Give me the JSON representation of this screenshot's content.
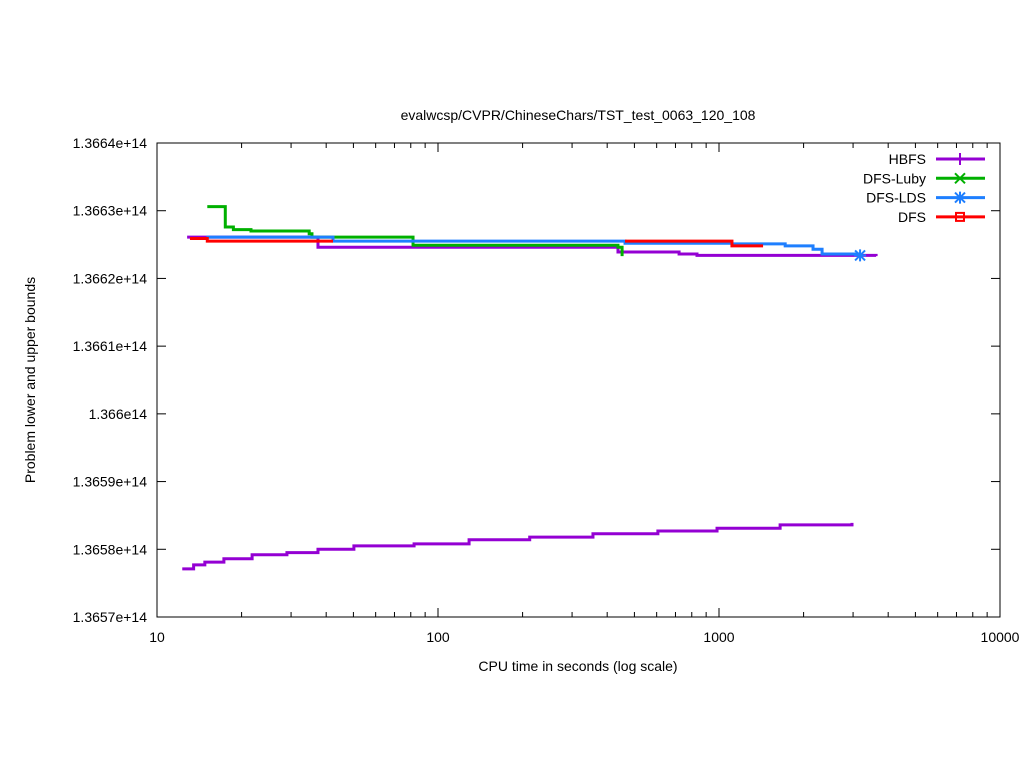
{
  "chart_data": {
    "type": "line",
    "title": "evalwcsp/CVPR/ChineseChars/TST_test_0063_120_108",
    "xlabel": "CPU time in seconds (log scale)",
    "ylabel": "Problem lower and upper bounds",
    "xscale": "log",
    "xlim": [
      10,
      10000
    ],
    "ylim": [
      136570000000000.0,
      136640000000000.0
    ],
    "x_ticks": [
      10,
      100,
      1000,
      10000
    ],
    "x_tick_labels": [
      "10",
      "100",
      "1000",
      "10000"
    ],
    "y_ticks": [
      136570000000000.0,
      136580000000000.0,
      136590000000000.0,
      136600000000000.0,
      136610000000000.0,
      136620000000000.0,
      136630000000000.0,
      136640000000000.0
    ],
    "y_tick_labels": [
      "1.3657e+14",
      "1.3658e+14",
      "1.3659e+14",
      "1.366e14",
      "1.3661e+14",
      "1.3662e+14",
      "1.3663e+14",
      "1.3664e+14"
    ],
    "legend_position": "top-right",
    "grid": false,
    "series": [
      {
        "name": "HBFS",
        "color": "#9400d3",
        "marker": "plus",
        "segments": [
          {
            "x": [
              12.8,
              37.4,
              437,
              721,
              835,
              3623
            ],
            "y": [
              136626100000000.0,
              136624600000000.0,
              136623900000000.0,
              136623600000000.0,
              136623400000000.0,
              136623300000000.0
            ]
          },
          {
            "x": [
              12.3,
              13.5,
              14.8,
              17.3,
              21.8,
              29.0,
              37.4,
              50.2,
              82.2,
              129,
              212,
              356,
              606,
              984,
              1650,
              2974
            ],
            "y": [
              136577100000000.0,
              136577700000000.0,
              136578100000000.0,
              136578600000000.0,
              136579200000000.0,
              136579500000000.0,
              136580000000000.0,
              136580500000000.0,
              136580800000000.0,
              136581400000000.0,
              136581800000000.0,
              136582300000000.0,
              136582700000000.0,
              136583100000000.0,
              136583600000000.0,
              136583900000000.0
            ]
          }
        ]
      },
      {
        "name": "DFS-Luby",
        "color": "#00b000",
        "marker": "cross",
        "segments": [
          {
            "x": [
              15.1,
              17.5,
              18.7,
              21.6,
              34.8,
              35.6,
              81.5,
              437,
              452
            ],
            "y": [
              136630600000000.0,
              136627600000000.0,
              136627200000000.0,
              136627000000000.0,
              136626600000000.0,
              136626100000000.0,
              136624900000000.0,
              136624600000000.0,
              136623300000000.0
            ]
          }
        ]
      },
      {
        "name": "DFS-LDS",
        "color": "#1e7fff",
        "marker": "asterisk",
        "segments": [
          {
            "x": [
              15.0,
              42.3,
              463,
              1112,
              1720,
              2161,
              2327,
              3177
            ],
            "y": [
              136626100000000.0,
              136625500000000.0,
              136625200000000.0,
              136625100000000.0,
              136624800000000.0,
              136624300000000.0,
              136623600000000.0,
              136623600000000.0
            ]
          }
        ]
      },
      {
        "name": "DFS",
        "color": "#ff0000",
        "marker": "square",
        "segments": [
          {
            "x": [
              13.1,
              15.1,
              42.3
            ],
            "y": [
              136625900000000.0,
              136625500000000.0,
              136625500000000.0
            ]
          },
          {
            "x": [
              463,
              1112,
              1435
            ],
            "y": [
              136625500000000.0,
              136624800000000.0,
              136624800000000.0
            ]
          }
        ]
      }
    ],
    "point_markers": [
      {
        "series": "DFS-LDS",
        "x": 3177,
        "y": 136623400000000.0
      }
    ]
  }
}
